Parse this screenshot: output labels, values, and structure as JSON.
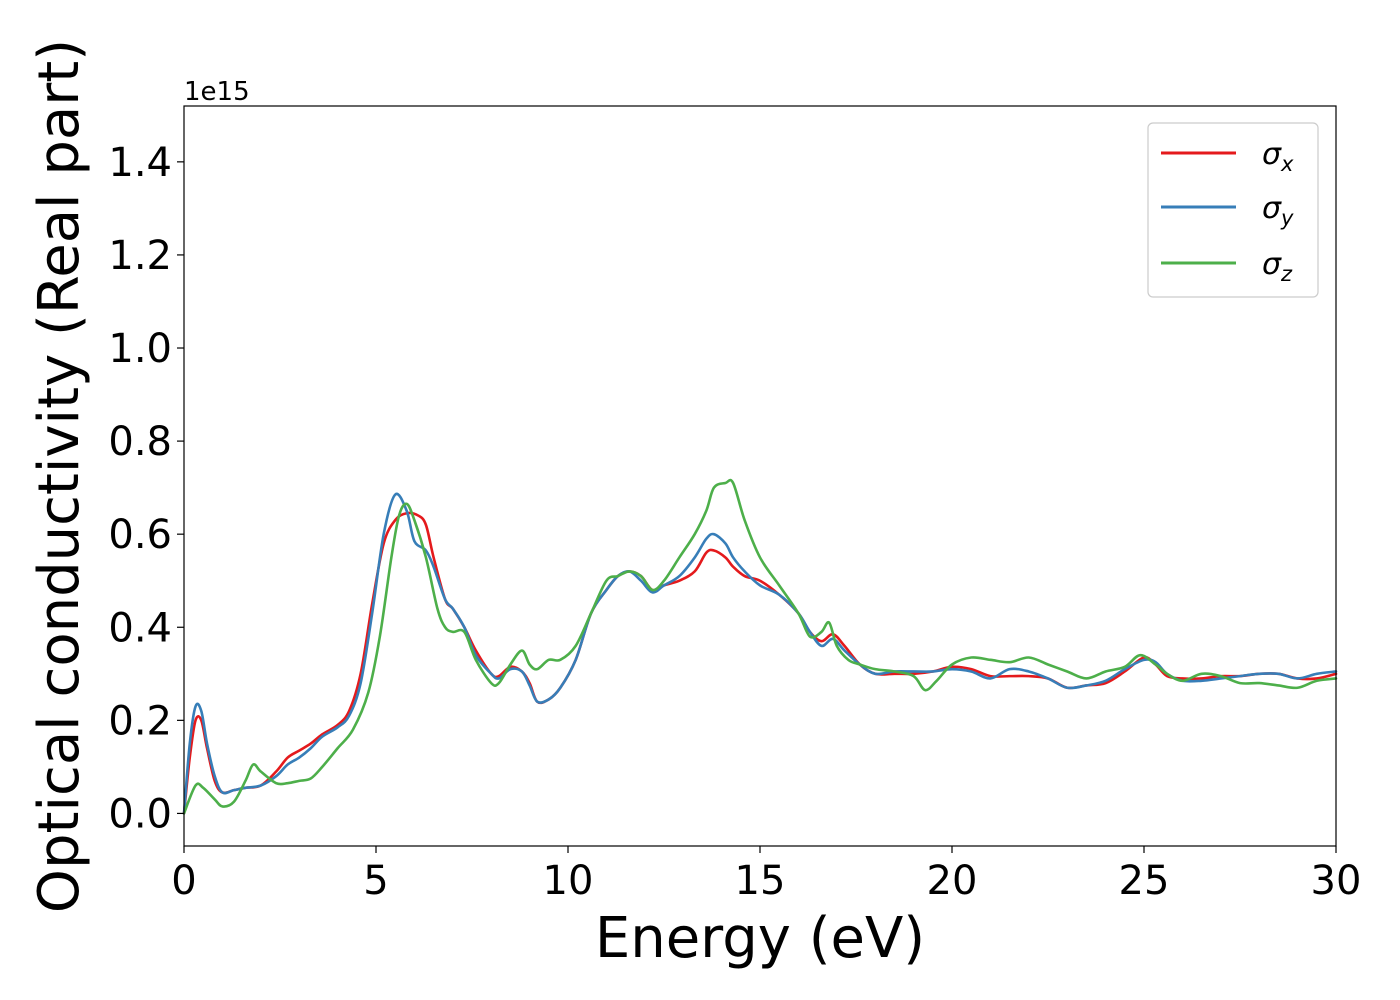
{
  "chart_data": {
    "type": "line",
    "title": "",
    "xlabel": "Energy (eV)",
    "ylabel": "Optical conductivity (Real part)",
    "y_offset_text": "1e15",
    "xlim": [
      0,
      30
    ],
    "ylim": [
      -0.07,
      1.52
    ],
    "xticks": [
      0,
      5,
      10,
      15,
      20,
      25,
      30
    ],
    "xtick_labels": [
      "0",
      "5",
      "10",
      "15",
      "20",
      "25",
      "30"
    ],
    "yticks": [
      0.0,
      0.2,
      0.4,
      0.6,
      0.8,
      1.0,
      1.2,
      1.4
    ],
    "ytick_labels": [
      "0.0",
      "0.2",
      "0.4",
      "0.6",
      "0.8",
      "1.0",
      "1.2",
      "1.4"
    ],
    "grid": false,
    "legend_position": "top-right",
    "series": [
      {
        "name": "σx",
        "legend_base": "σ",
        "legend_sub": "x",
        "color": "#e41a1c",
        "x": [
          0,
          0.15,
          0.3,
          0.45,
          0.6,
          0.8,
          1.0,
          1.3,
          1.6,
          2.0,
          2.4,
          2.7,
          3.0,
          3.3,
          3.6,
          4.0,
          4.3,
          4.6,
          4.9,
          5.2,
          5.5,
          5.8,
          6.1,
          6.3,
          6.5,
          6.8,
          7.0,
          7.3,
          7.6,
          8.0,
          8.2,
          8.5,
          8.8,
          9.0,
          9.2,
          9.5,
          9.8,
          10.2,
          10.6,
          11.0,
          11.3,
          11.6,
          11.9,
          12.2,
          12.5,
          12.9,
          13.3,
          13.6,
          13.8,
          14.1,
          14.3,
          14.6,
          15.0,
          15.5,
          16.0,
          16.3,
          16.6,
          16.9,
          17.2,
          17.6,
          18.0,
          18.5,
          19.0,
          19.5,
          20.0,
          20.5,
          21.0,
          21.5,
          22.0,
          22.5,
          23.0,
          23.5,
          24.0,
          24.5,
          25.0,
          25.3,
          25.6,
          26.0,
          26.5,
          27.0,
          27.5,
          28.0,
          28.5,
          29.0,
          29.5,
          30.0
        ],
        "y": [
          0.0,
          0.12,
          0.2,
          0.2,
          0.14,
          0.07,
          0.045,
          0.05,
          0.055,
          0.06,
          0.09,
          0.12,
          0.135,
          0.15,
          0.17,
          0.19,
          0.22,
          0.3,
          0.45,
          0.58,
          0.63,
          0.645,
          0.64,
          0.62,
          0.55,
          0.46,
          0.44,
          0.4,
          0.35,
          0.3,
          0.295,
          0.315,
          0.305,
          0.28,
          0.24,
          0.245,
          0.27,
          0.33,
          0.43,
          0.48,
          0.51,
          0.52,
          0.51,
          0.48,
          0.49,
          0.5,
          0.52,
          0.56,
          0.565,
          0.55,
          0.53,
          0.51,
          0.5,
          0.47,
          0.43,
          0.39,
          0.37,
          0.385,
          0.36,
          0.32,
          0.3,
          0.3,
          0.3,
          0.305,
          0.315,
          0.31,
          0.295,
          0.295,
          0.295,
          0.29,
          0.27,
          0.275,
          0.28,
          0.305,
          0.335,
          0.32,
          0.295,
          0.29,
          0.29,
          0.295,
          0.295,
          0.3,
          0.3,
          0.29,
          0.29,
          0.3
        ]
      },
      {
        "name": "σy",
        "legend_base": "σ",
        "legend_sub": "y",
        "color": "#377eb8",
        "x": [
          0,
          0.15,
          0.3,
          0.45,
          0.6,
          0.8,
          1.0,
          1.3,
          1.6,
          2.0,
          2.4,
          2.7,
          3.0,
          3.3,
          3.6,
          4.0,
          4.3,
          4.6,
          4.9,
          5.2,
          5.5,
          5.8,
          6.0,
          6.3,
          6.5,
          6.8,
          7.0,
          7.3,
          7.6,
          8.0,
          8.2,
          8.5,
          8.8,
          9.0,
          9.2,
          9.5,
          9.8,
          10.2,
          10.6,
          11.0,
          11.3,
          11.6,
          11.9,
          12.2,
          12.5,
          12.9,
          13.3,
          13.6,
          13.8,
          14.1,
          14.3,
          14.6,
          15.0,
          15.5,
          16.0,
          16.3,
          16.6,
          16.9,
          17.2,
          17.6,
          18.0,
          18.5,
          19.0,
          19.5,
          20.0,
          20.5,
          21.0,
          21.5,
          22.0,
          22.5,
          23.0,
          23.5,
          24.0,
          24.5,
          25.0,
          25.3,
          25.6,
          26.0,
          26.5,
          27.0,
          27.5,
          28.0,
          28.5,
          29.0,
          29.5,
          30.0
        ],
        "y": [
          0.0,
          0.15,
          0.23,
          0.22,
          0.15,
          0.08,
          0.045,
          0.05,
          0.055,
          0.06,
          0.08,
          0.105,
          0.12,
          0.14,
          0.165,
          0.185,
          0.21,
          0.28,
          0.43,
          0.6,
          0.685,
          0.65,
          0.585,
          0.565,
          0.53,
          0.46,
          0.44,
          0.4,
          0.34,
          0.3,
          0.29,
          0.31,
          0.305,
          0.275,
          0.24,
          0.245,
          0.27,
          0.33,
          0.43,
          0.48,
          0.51,
          0.52,
          0.5,
          0.475,
          0.49,
          0.51,
          0.55,
          0.59,
          0.6,
          0.58,
          0.55,
          0.52,
          0.49,
          0.47,
          0.43,
          0.39,
          0.36,
          0.375,
          0.35,
          0.32,
          0.3,
          0.305,
          0.305,
          0.305,
          0.31,
          0.305,
          0.29,
          0.31,
          0.305,
          0.29,
          0.27,
          0.275,
          0.285,
          0.31,
          0.33,
          0.325,
          0.3,
          0.285,
          0.285,
          0.29,
          0.295,
          0.3,
          0.3,
          0.29,
          0.3,
          0.305
        ]
      },
      {
        "name": "σz",
        "legend_base": "σ",
        "legend_sub": "z",
        "color": "#4daf4a",
        "x": [
          0,
          0.3,
          0.5,
          0.8,
          1.0,
          1.3,
          1.6,
          1.8,
          2.0,
          2.4,
          2.7,
          3.0,
          3.3,
          3.6,
          4.0,
          4.4,
          4.8,
          5.1,
          5.4,
          5.6,
          5.8,
          6.0,
          6.3,
          6.6,
          6.8,
          7.0,
          7.3,
          7.6,
          8.0,
          8.2,
          8.5,
          8.8,
          9.0,
          9.2,
          9.5,
          9.8,
          10.2,
          10.6,
          11.0,
          11.3,
          11.6,
          11.9,
          12.2,
          12.5,
          12.9,
          13.3,
          13.6,
          13.8,
          14.1,
          14.3,
          14.6,
          15.0,
          15.5,
          16.0,
          16.3,
          16.6,
          16.8,
          17.0,
          17.3,
          17.6,
          18.0,
          18.5,
          19.0,
          19.3,
          19.6,
          20.0,
          20.5,
          21.0,
          21.5,
          22.0,
          22.5,
          23.0,
          23.5,
          24.0,
          24.5,
          24.9,
          25.3,
          25.6,
          26.0,
          26.5,
          27.0,
          27.5,
          28.0,
          28.5,
          29.0,
          29.5,
          30.0
        ],
        "y": [
          0.0,
          0.06,
          0.055,
          0.03,
          0.015,
          0.025,
          0.07,
          0.105,
          0.09,
          0.065,
          0.065,
          0.07,
          0.075,
          0.1,
          0.14,
          0.18,
          0.26,
          0.38,
          0.55,
          0.64,
          0.665,
          0.63,
          0.55,
          0.44,
          0.4,
          0.39,
          0.39,
          0.33,
          0.28,
          0.28,
          0.32,
          0.35,
          0.32,
          0.31,
          0.33,
          0.33,
          0.36,
          0.43,
          0.5,
          0.51,
          0.52,
          0.51,
          0.48,
          0.5,
          0.55,
          0.6,
          0.65,
          0.7,
          0.71,
          0.71,
          0.63,
          0.55,
          0.49,
          0.43,
          0.38,
          0.39,
          0.41,
          0.36,
          0.33,
          0.32,
          0.31,
          0.305,
          0.295,
          0.265,
          0.285,
          0.32,
          0.335,
          0.33,
          0.325,
          0.335,
          0.32,
          0.305,
          0.29,
          0.305,
          0.315,
          0.34,
          0.32,
          0.3,
          0.285,
          0.3,
          0.295,
          0.28,
          0.28,
          0.275,
          0.27,
          0.285,
          0.29
        ]
      }
    ]
  }
}
